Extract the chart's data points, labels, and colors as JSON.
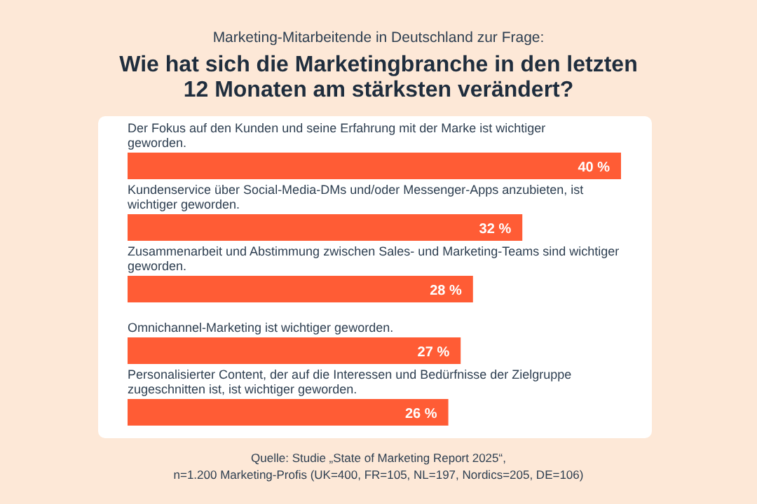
{
  "chart_data": {
    "type": "bar",
    "orientation": "horizontal",
    "subtitle": "Marketing-Mitarbeitende in Deutschland zur Frage:",
    "title": "Wie hat sich die Marketingbranche in den letzten 12 Monaten am stärksten verändert?",
    "categories": [
      "Der Fokus auf den Kunden und seine Erfahrung mit der Marke ist wichtiger geworden.",
      "Kundenservice über Social-Media-DMs und/oder Messenger-Apps anzubieten, ist wichtiger geworden.",
      "Zusammenarbeit und Abstimmung zwischen Sales- und Marketing-Teams sind wichtiger geworden.",
      "Omnichannel-Marketing ist wichtiger geworden.",
      "Personalisierter Content, der auf die Interessen und Bedürfnisse der Zielgruppe zugeschnitten ist, ist wichtiger geworden."
    ],
    "values": [
      40,
      32,
      28,
      27,
      26
    ],
    "value_labels": [
      "40 %",
      "32 %",
      "28 %",
      "27 %",
      "26 %"
    ],
    "color": "#ff5c35",
    "annotations": [
      "Quelle: Studie „State of Marketing Report 2025“,",
      "n=1.200 Marketing-Profis  (UK=400, FR=105, NL=197, Nordics=205, DE=106)"
    ]
  }
}
